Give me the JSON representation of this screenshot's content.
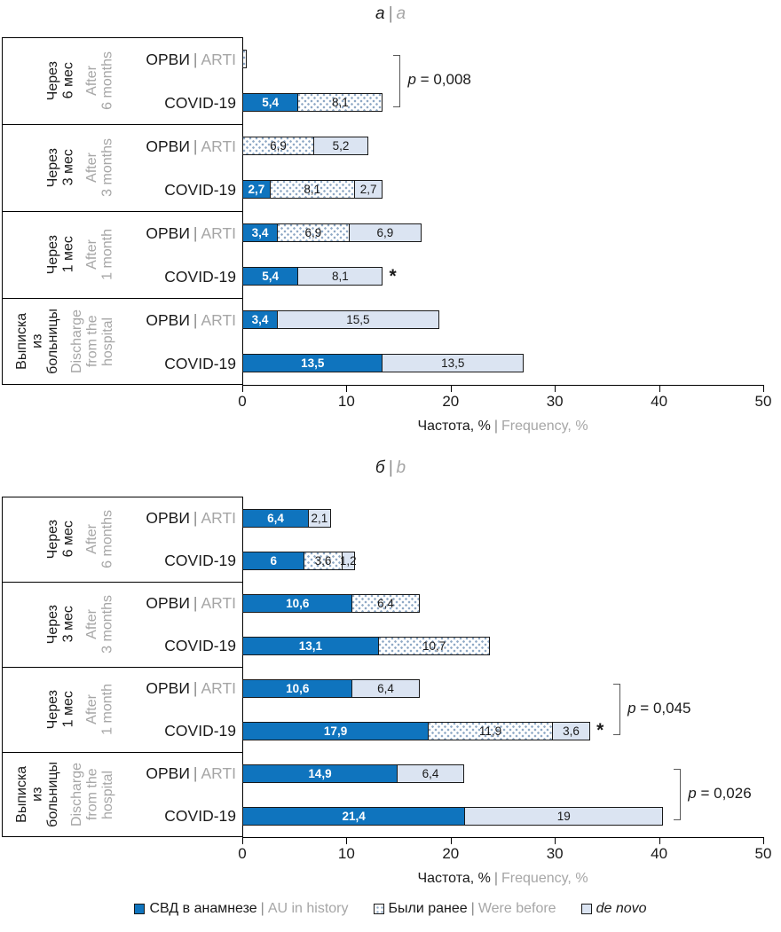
{
  "misc": {
    "pipe": "|",
    "asterisk": "*"
  },
  "colors": {
    "bar_history_blue": "#0f74be",
    "bar_de_novo_light": "#dbe4f2",
    "dot_pattern": "#8fa9c6",
    "bar_border": "#1a1a1a",
    "gray_text": "#a6a6a6",
    "bracket_gray": "#595959"
  },
  "legend": {
    "items": [
      {
        "swatch": "history",
        "label_ru": "СВД в анамнезе",
        "label_en": "AU in history",
        "italic": false
      },
      {
        "swatch": "were_before",
        "label_ru": "Были ранее",
        "label_en": "Were before",
        "italic": false
      },
      {
        "swatch": "de_novo",
        "label_ru": "de novo",
        "label_en": "",
        "italic": true
      }
    ]
  },
  "chart_data": [
    {
      "type": "bar",
      "stacked": true,
      "orientation": "horizontal",
      "panel_title_ru": "а",
      "panel_title_en": "a",
      "xlabel_ru": "Частота, %",
      "xlabel_en": "Frequency, %",
      "xlim": [
        0,
        50
      ],
      "xticks": [
        "0",
        "10",
        "20",
        "30",
        "40",
        "50"
      ],
      "grid": false,
      "groups": [
        {
          "label_ru_lines": [
            "Через",
            "6 мес"
          ],
          "label_en_lines": [
            "After",
            "6 months"
          ],
          "bracket": {
            "p_var": "p",
            "p_rest": " = 0,008",
            "label": "p = 0,008"
          },
          "rows": [
            {
              "name_ru": "ОРВИ",
              "name_en": "ARTI",
              "asterisk": false,
              "segments": [
                {
                  "series": "were_before",
                  "value": 0.4,
                  "label": ""
                }
              ]
            },
            {
              "name_ru": "COVID-19",
              "name_en": "",
              "asterisk": false,
              "segments": [
                {
                  "series": "history",
                  "value": 5.4,
                  "label": "5,4"
                },
                {
                  "series": "were_before",
                  "value": 8.1,
                  "label": "8,1"
                }
              ]
            }
          ]
        },
        {
          "label_ru_lines": [
            "Через",
            "3 мес"
          ],
          "label_en_lines": [
            "After",
            "3 months"
          ],
          "rows": [
            {
              "name_ru": "ОРВИ",
              "name_en": "ARTI",
              "asterisk": false,
              "segments": [
                {
                  "series": "were_before",
                  "value": 6.9,
                  "label": "6,9"
                },
                {
                  "series": "de_novo",
                  "value": 5.2,
                  "label": "5,2"
                }
              ]
            },
            {
              "name_ru": "COVID-19",
              "name_en": "",
              "asterisk": false,
              "segments": [
                {
                  "series": "history",
                  "value": 2.7,
                  "label": "2,7"
                },
                {
                  "series": "were_before",
                  "value": 8.1,
                  "label": "8,1"
                },
                {
                  "series": "de_novo",
                  "value": 2.7,
                  "label": "2,7"
                }
              ]
            }
          ]
        },
        {
          "label_ru_lines": [
            "Через",
            "1 мес"
          ],
          "label_en_lines": [
            "After",
            "1 month"
          ],
          "rows": [
            {
              "name_ru": "ОРВИ",
              "name_en": "ARTI",
              "asterisk": false,
              "segments": [
                {
                  "series": "history",
                  "value": 3.4,
                  "label": "3,4"
                },
                {
                  "series": "were_before",
                  "value": 6.9,
                  "label": "6,9"
                },
                {
                  "series": "de_novo",
                  "value": 6.9,
                  "label": "6,9"
                }
              ]
            },
            {
              "name_ru": "COVID-19",
              "name_en": "",
              "asterisk": true,
              "segments": [
                {
                  "series": "history",
                  "value": 5.4,
                  "label": "5,4"
                },
                {
                  "series": "de_novo",
                  "value": 8.1,
                  "label": "8,1"
                }
              ]
            }
          ]
        },
        {
          "label_ru_lines": [
            "Выписка",
            "из",
            "больницы"
          ],
          "label_en_lines": [
            "Discharge",
            "from the",
            "hospital"
          ],
          "rows": [
            {
              "name_ru": "ОРВИ",
              "name_en": "ARTI",
              "asterisk": false,
              "segments": [
                {
                  "series": "history",
                  "value": 3.4,
                  "label": "3,4"
                },
                {
                  "series": "de_novo",
                  "value": 15.5,
                  "label": "15,5"
                }
              ]
            },
            {
              "name_ru": "COVID-19",
              "name_en": "",
              "asterisk": false,
              "segments": [
                {
                  "series": "history",
                  "value": 13.5,
                  "label": "13,5"
                },
                {
                  "series": "de_novo",
                  "value": 13.5,
                  "label": "13,5"
                }
              ]
            }
          ]
        }
      ]
    },
    {
      "type": "bar",
      "stacked": true,
      "orientation": "horizontal",
      "panel_title_ru": "б",
      "panel_title_en": "b",
      "xlabel_ru": "Частота, %",
      "xlabel_en": "Frequency, %",
      "xlim": [
        0,
        50
      ],
      "xticks": [
        "0",
        "10",
        "20",
        "30",
        "40",
        "50"
      ],
      "grid": false,
      "groups": [
        {
          "label_ru_lines": [
            "Через",
            "6 мес"
          ],
          "label_en_lines": [
            "After",
            "6 months"
          ],
          "rows": [
            {
              "name_ru": "ОРВИ",
              "name_en": "ARTI",
              "asterisk": false,
              "segments": [
                {
                  "series": "history",
                  "value": 6.4,
                  "label": "6,4"
                },
                {
                  "series": "de_novo",
                  "value": 2.1,
                  "label": "2,1"
                }
              ]
            },
            {
              "name_ru": "COVID-19",
              "name_en": "",
              "asterisk": false,
              "segments": [
                {
                  "series": "history",
                  "value": 6.0,
                  "label": "6"
                },
                {
                  "series": "were_before",
                  "value": 3.6,
                  "label": "3,6"
                },
                {
                  "series": "de_novo",
                  "value": 1.2,
                  "label": "1,2"
                }
              ]
            }
          ]
        },
        {
          "label_ru_lines": [
            "Через",
            "3 мес"
          ],
          "label_en_lines": [
            "After",
            "3 months"
          ],
          "rows": [
            {
              "name_ru": "ОРВИ",
              "name_en": "ARTI",
              "asterisk": false,
              "segments": [
                {
                  "series": "history",
                  "value": 10.6,
                  "label": "10,6"
                },
                {
                  "series": "were_before",
                  "value": 6.4,
                  "label": "6,4"
                }
              ]
            },
            {
              "name_ru": "COVID-19",
              "name_en": "",
              "asterisk": false,
              "segments": [
                {
                  "series": "history",
                  "value": 13.1,
                  "label": "13,1"
                },
                {
                  "series": "were_before",
                  "value": 10.7,
                  "label": "10,7"
                }
              ]
            }
          ]
        },
        {
          "label_ru_lines": [
            "Через",
            "1 мес"
          ],
          "label_en_lines": [
            "After",
            "1 month"
          ],
          "bracket": {
            "p_var": "p",
            "p_rest": " = 0,045",
            "label": "p = 0,045"
          },
          "rows": [
            {
              "name_ru": "ОРВИ",
              "name_en": "ARTI",
              "asterisk": false,
              "segments": [
                {
                  "series": "history",
                  "value": 10.6,
                  "label": "10,6"
                },
                {
                  "series": "de_novo",
                  "value": 6.4,
                  "label": "6,4"
                }
              ]
            },
            {
              "name_ru": "COVID-19",
              "name_en": "",
              "asterisk": true,
              "segments": [
                {
                  "series": "history",
                  "value": 17.9,
                  "label": "17,9"
                },
                {
                  "series": "were_before",
                  "value": 11.9,
                  "label": "11,9"
                },
                {
                  "series": "de_novo",
                  "value": 3.6,
                  "label": "3,6"
                }
              ]
            }
          ]
        },
        {
          "label_ru_lines": [
            "Выписка",
            "из",
            "больницы"
          ],
          "label_en_lines": [
            "Discharge",
            "from the",
            "hospital"
          ],
          "bracket": {
            "p_var": "p",
            "p_rest": " = 0,026",
            "label": "p = 0,026"
          },
          "rows": [
            {
              "name_ru": "ОРВИ",
              "name_en": "ARTI",
              "asterisk": false,
              "segments": [
                {
                  "series": "history",
                  "value": 14.9,
                  "label": "14,9"
                },
                {
                  "series": "de_novo",
                  "value": 6.4,
                  "label": "6,4"
                }
              ]
            },
            {
              "name_ru": "COVID-19",
              "name_en": "",
              "asterisk": false,
              "segments": [
                {
                  "series": "history",
                  "value": 21.4,
                  "label": "21,4"
                },
                {
                  "series": "de_novo",
                  "value": 19.0,
                  "label": "19"
                }
              ]
            }
          ]
        }
      ]
    }
  ]
}
